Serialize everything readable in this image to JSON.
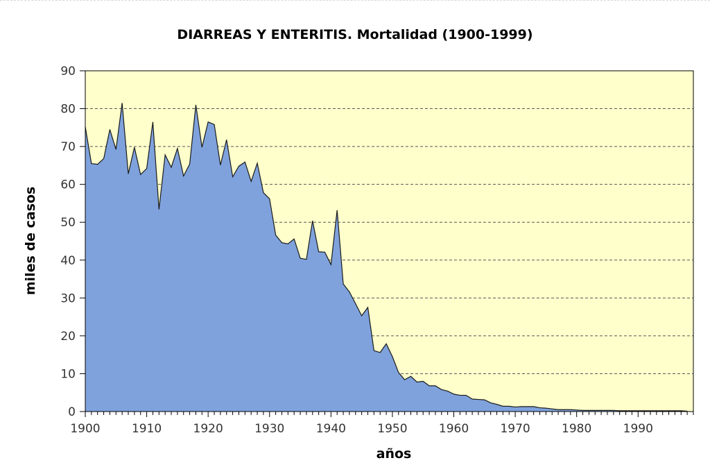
{
  "chart_data": {
    "type": "area",
    "title": "DIARREAS Y ENTERITIS. Mortalidad (1900-1999)",
    "xlabel": "años",
    "ylabel": "miles de casos",
    "xlim": [
      1900,
      1999
    ],
    "ylim": [
      0,
      90
    ],
    "x_ticks": [
      1900,
      1910,
      1920,
      1930,
      1940,
      1950,
      1960,
      1970,
      1980,
      1990
    ],
    "y_ticks": [
      0,
      10,
      20,
      30,
      40,
      50,
      60,
      70,
      80,
      90
    ],
    "grid": "horizontal dashed",
    "colors": {
      "fill": "#7fa2dc",
      "plot_background": "#ffffcc",
      "line": "#1a1a1a"
    },
    "x": [
      1900,
      1901,
      1902,
      1903,
      1904,
      1905,
      1906,
      1907,
      1908,
      1909,
      1910,
      1911,
      1912,
      1913,
      1914,
      1915,
      1916,
      1917,
      1918,
      1919,
      1920,
      1921,
      1922,
      1923,
      1924,
      1925,
      1926,
      1927,
      1928,
      1929,
      1930,
      1931,
      1932,
      1933,
      1934,
      1935,
      1936,
      1937,
      1938,
      1939,
      1940,
      1941,
      1942,
      1943,
      1944,
      1945,
      1946,
      1947,
      1948,
      1949,
      1950,
      1951,
      1952,
      1953,
      1954,
      1955,
      1956,
      1957,
      1958,
      1959,
      1960,
      1961,
      1962,
      1963,
      1964,
      1965,
      1966,
      1967,
      1968,
      1969,
      1970,
      1971,
      1972,
      1973,
      1974,
      1975,
      1976,
      1977,
      1978,
      1979,
      1980,
      1981,
      1982,
      1983,
      1984,
      1985,
      1986,
      1987,
      1988,
      1989,
      1990,
      1991,
      1992,
      1993,
      1994,
      1995,
      1996,
      1997,
      1998
    ],
    "values": [
      75.2,
      65.5,
      65.3,
      66.8,
      74.5,
      69.2,
      81.5,
      62.8,
      69.8,
      62.6,
      64.2,
      76.5,
      53.4,
      67.8,
      64.5,
      69.5,
      62.2,
      65.4,
      81.0,
      69.8,
      76.5,
      75.8,
      65.1,
      71.8,
      62.0,
      64.8,
      65.9,
      60.8,
      65.6,
      57.8,
      56.2,
      46.6,
      44.6,
      44.3,
      45.6,
      40.5,
      40.2,
      50.4,
      42.2,
      42.1,
      38.8,
      53.2,
      33.7,
      31.6,
      28.5,
      25.3,
      27.5,
      16.1,
      15.6,
      17.9,
      14.5,
      10.3,
      8.4,
      9.3,
      7.8,
      8.0,
      6.8,
      6.8,
      5.8,
      5.4,
      4.6,
      4.3,
      4.3,
      3.3,
      3.2,
      3.1,
      2.3,
      1.9,
      1.4,
      1.4,
      1.2,
      1.3,
      1.3,
      1.3,
      1.0,
      0.9,
      0.7,
      0.5,
      0.5,
      0.5,
      0.4,
      0.3,
      0.3,
      0.3,
      0.3,
      0.3,
      0.3,
      0.2,
      0.2,
      0.2,
      0.2,
      0.2,
      0.2,
      0.2,
      0.2,
      0.2,
      0.2,
      0.2,
      0.1
    ]
  }
}
